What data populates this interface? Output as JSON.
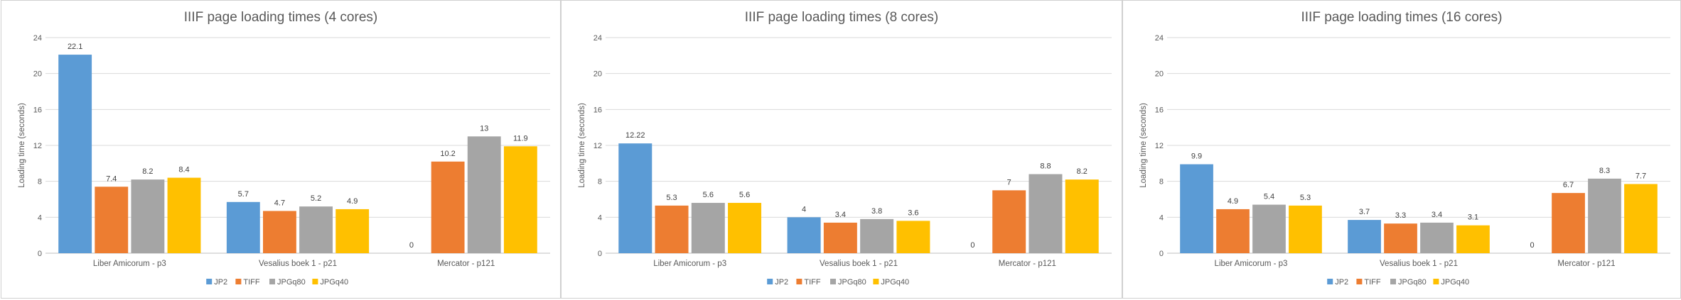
{
  "chart_data": [
    {
      "type": "bar",
      "title": "IIIF page loading times (4 cores)",
      "ylabel": "Loading time (seconds)",
      "xlabel": "",
      "ylim": [
        0,
        24
      ],
      "yticks": [
        0,
        4,
        8,
        12,
        16,
        20,
        24
      ],
      "grid": true,
      "legend_position": "bottom",
      "categories": [
        "Liber Amicorum - p3",
        "Vesalius boek 1 - p21",
        "Mercator - p121"
      ],
      "series": [
        {
          "name": "JP2",
          "values": [
            22.1,
            5.7,
            0
          ],
          "labels": [
            "22.1",
            "5.7",
            "0"
          ],
          "color": "#5b9bd5"
        },
        {
          "name": "TIFF",
          "values": [
            7.4,
            4.7,
            10.2
          ],
          "labels": [
            "7.4",
            "4.7",
            "10.2"
          ],
          "color": "#ed7d31"
        },
        {
          "name": "JPGq80",
          "values": [
            8.2,
            5.2,
            13
          ],
          "labels": [
            "8.2",
            "5.2",
            "13"
          ],
          "color": "#a5a5a5"
        },
        {
          "name": "JPGq40",
          "values": [
            8.4,
            4.9,
            11.9
          ],
          "labels": [
            "8.4",
            "4.9",
            "11.9"
          ],
          "color": "#ffc000"
        }
      ]
    },
    {
      "type": "bar",
      "title": "IIIF page loading times (8 cores)",
      "ylabel": "Loading time (seconds)",
      "xlabel": "",
      "ylim": [
        0,
        24
      ],
      "yticks": [
        0,
        4,
        8,
        12,
        16,
        20,
        24
      ],
      "grid": true,
      "legend_position": "bottom",
      "categories": [
        "Liber Amicorum - p3",
        "Vesalius boek 1 - p21",
        "Mercator - p121"
      ],
      "series": [
        {
          "name": "JP2",
          "values": [
            12.22,
            4,
            0
          ],
          "labels": [
            "12.22",
            "4",
            "0"
          ],
          "color": "#5b9bd5"
        },
        {
          "name": "TIFF",
          "values": [
            5.3,
            3.4,
            7
          ],
          "labels": [
            "5.3",
            "3.4",
            "7"
          ],
          "color": "#ed7d31"
        },
        {
          "name": "JPGq80",
          "values": [
            5.6,
            3.8,
            8.8
          ],
          "labels": [
            "5.6",
            "3.8",
            "8.8"
          ],
          "color": "#a5a5a5"
        },
        {
          "name": "JPGq40",
          "values": [
            5.6,
            3.6,
            8.2
          ],
          "labels": [
            "5.6",
            "3.6",
            "8.2"
          ],
          "color": "#ffc000"
        }
      ]
    },
    {
      "type": "bar",
      "title": "IIIF page loading times (16 cores)",
      "ylabel": "Loading time (seconds)",
      "xlabel": "",
      "ylim": [
        0,
        24
      ],
      "yticks": [
        0,
        4,
        8,
        12,
        16,
        20,
        24
      ],
      "grid": true,
      "legend_position": "bottom",
      "categories": [
        "Liber Amicorum - p3",
        "Vesalius boek 1 - p21",
        "Mercator - p121"
      ],
      "series": [
        {
          "name": "JP2",
          "values": [
            9.9,
            3.7,
            0
          ],
          "labels": [
            "9.9",
            "3.7",
            "0"
          ],
          "color": "#5b9bd5"
        },
        {
          "name": "TIFF",
          "values": [
            4.9,
            3.3,
            6.7
          ],
          "labels": [
            "4.9",
            "3.3",
            "6.7"
          ],
          "color": "#ed7d31"
        },
        {
          "name": "JPGq80",
          "values": [
            5.4,
            3.4,
            8.3
          ],
          "labels": [
            "5.4",
            "3.4",
            "8.3"
          ],
          "color": "#a5a5a5"
        },
        {
          "name": "JPGq40",
          "values": [
            5.3,
            3.1,
            7.7
          ],
          "labels": [
            "5.3",
            "3.1",
            "7.7"
          ],
          "color": "#ffc000"
        }
      ]
    }
  ]
}
